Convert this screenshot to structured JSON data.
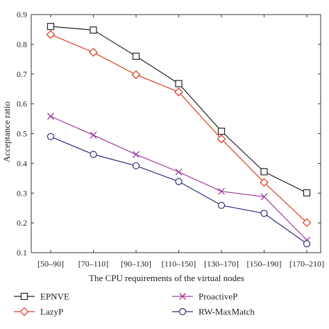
{
  "chart_data": {
    "type": "line",
    "categories": [
      "[50–90]",
      "[70–110]",
      "[90–130]",
      "[110–150]",
      "[130–170]",
      "[150–190]",
      "[170–210]"
    ],
    "xlabel": "The CPU requirements of the virtual nodes",
    "ylabel": "Acceptance ratio",
    "ylim": [
      0.1,
      0.9
    ],
    "yticks": [
      0.1,
      0.2,
      0.3,
      0.4,
      0.5,
      0.6,
      0.7,
      0.8,
      0.9
    ],
    "grid": false,
    "legend_placement": "bottom",
    "series": [
      {
        "name": "EPNVE",
        "color": "#222222",
        "marker": "square",
        "values": [
          0.86,
          0.848,
          0.76,
          0.668,
          0.508,
          0.372,
          0.301
        ]
      },
      {
        "name": "LazyP",
        "color": "#d93a1c",
        "marker": "diamond",
        "values": [
          0.833,
          0.773,
          0.698,
          0.64,
          0.482,
          0.336,
          0.201
        ]
      },
      {
        "name": "ProactiveP",
        "color": "#9b3a9b",
        "marker": "x",
        "values": [
          0.558,
          0.495,
          0.43,
          0.371,
          0.306,
          0.288,
          0.142
        ]
      },
      {
        "name": "RW-MaxMatch",
        "color": "#2a2a7a",
        "marker": "circle",
        "values": [
          0.49,
          0.43,
          0.392,
          0.339,
          0.259,
          0.232,
          0.13
        ]
      }
    ]
  }
}
